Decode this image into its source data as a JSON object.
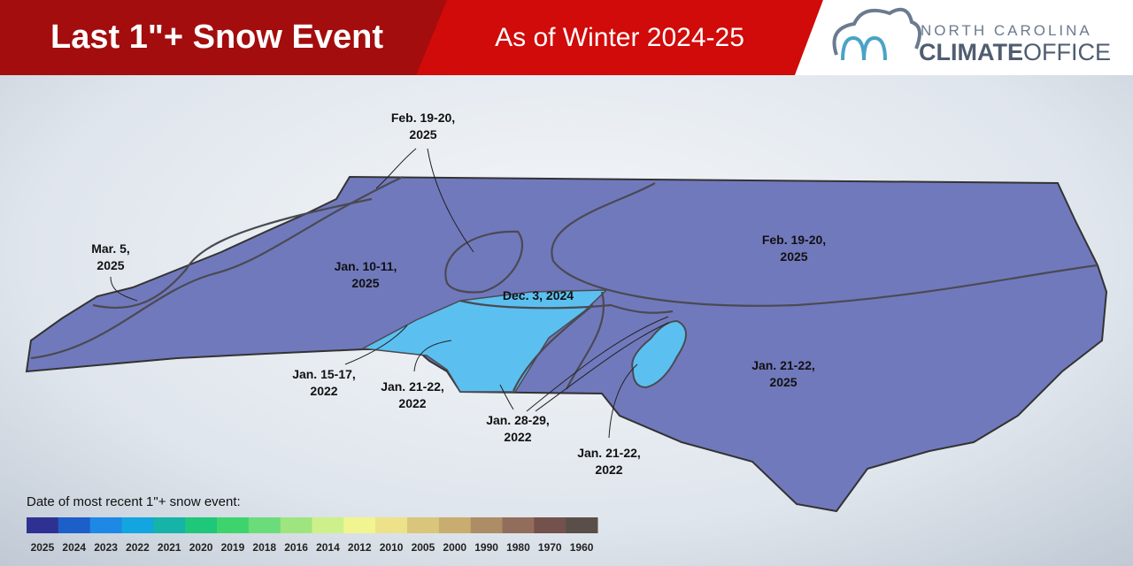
{
  "header": {
    "title": "Last 1\"+ Snow Event",
    "subtitle": "As of Winter 2024-25"
  },
  "logo": {
    "line1": "NORTH CAROLINA",
    "line2a": "CLIMATE",
    "line2b": "OFFICE"
  },
  "region_labels": [
    {
      "lines": [
        "Feb. 19-20,",
        "2025"
      ]
    },
    {
      "lines": [
        "Mar. 5,",
        "2025"
      ]
    },
    {
      "lines": [
        "Jan. 10-11,",
        "2025"
      ]
    },
    {
      "lines": [
        "Dec. 3, 2024"
      ]
    },
    {
      "lines": [
        "Feb. 19-20,",
        "2025"
      ]
    },
    {
      "lines": [
        "Jan. 15-17,",
        "2022"
      ]
    },
    {
      "lines": [
        "Jan. 21-22,",
        "2022"
      ]
    },
    {
      "lines": [
        "Jan. 28-29,",
        "2022"
      ]
    },
    {
      "lines": [
        "Jan. 21-22,",
        "2022"
      ]
    },
    {
      "lines": [
        "Jan. 21-22,",
        "2025"
      ]
    }
  ],
  "legend": {
    "title": "Date of most recent 1\"+ snow event:",
    "items": [
      {
        "label": "2025",
        "color": "#2e3192"
      },
      {
        "label": "2024",
        "color": "#1c5fc8"
      },
      {
        "label": "2023",
        "color": "#1e88e5"
      },
      {
        "label": "2022",
        "color": "#12a5e0"
      },
      {
        "label": "2021",
        "color": "#16b3a8"
      },
      {
        "label": "2020",
        "color": "#1ec77a"
      },
      {
        "label": "2019",
        "color": "#3dd46e"
      },
      {
        "label": "2018",
        "color": "#6bdc7a"
      },
      {
        "label": "2016",
        "color": "#9fe57f"
      },
      {
        "label": "2014",
        "color": "#cdf08a"
      },
      {
        "label": "2012",
        "color": "#f0f590"
      },
      {
        "label": "2010",
        "color": "#ede18a"
      },
      {
        "label": "2005",
        "color": "#d9c67a"
      },
      {
        "label": "2000",
        "color": "#c9ad70"
      },
      {
        "label": "1990",
        "color": "#ad8d66"
      },
      {
        "label": "1980",
        "color": "#936d5c"
      },
      {
        "label": "1970",
        "color": "#73514c"
      },
      {
        "label": "1960",
        "color": "#5a4f48"
      }
    ]
  }
}
